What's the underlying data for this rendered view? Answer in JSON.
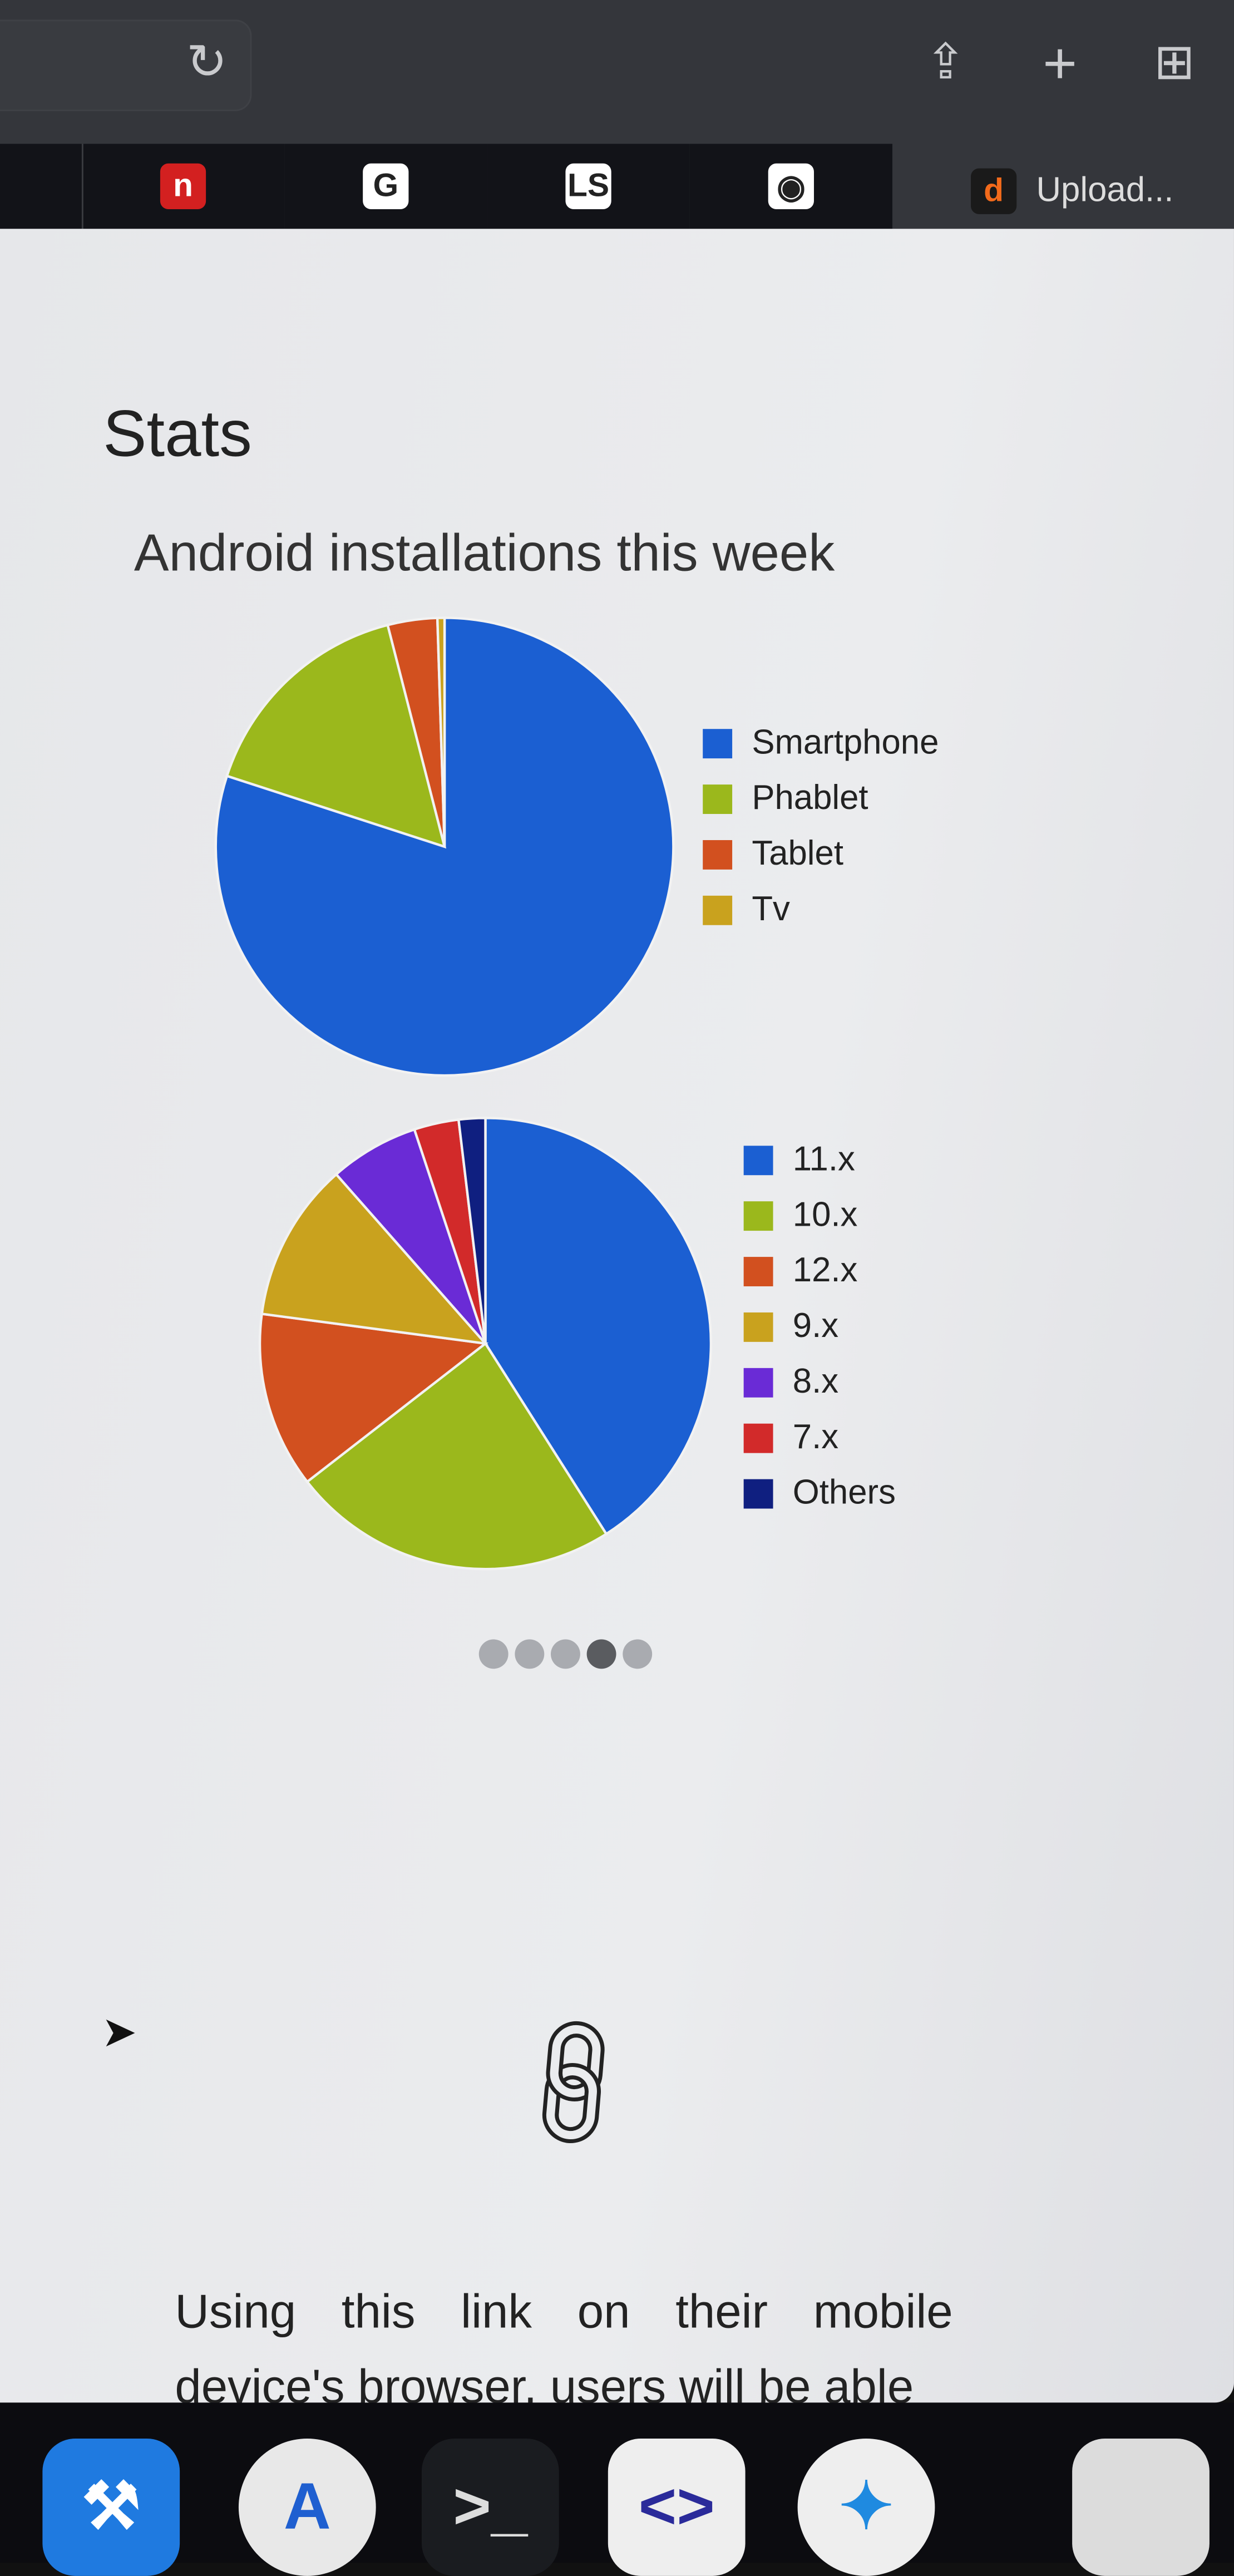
{
  "browser": {
    "toolbar_icons": [
      "reload-icon",
      "share-icon",
      "new-tab-icon",
      "tab-overview-icon"
    ],
    "tabs": [
      {
        "icon": "n-favicon",
        "glyph": "n",
        "color": "#d32020"
      },
      {
        "icon": "google-favicon",
        "glyph": "G",
        "color": "#ffffff"
      },
      {
        "icon": "ls-favicon",
        "glyph": "LS",
        "color": "#ffffff"
      },
      {
        "icon": "github-favicon",
        "glyph": "◉",
        "color": "#ffffff"
      }
    ],
    "active_tab": {
      "icon_glyph": "d",
      "icon_color": "#f26a1b",
      "label": "Upload..."
    }
  },
  "page": {
    "title": "Stats",
    "subtitle": "Android installations this week",
    "carousel": {
      "count": 5,
      "active_index": 3
    },
    "paragraph": "Using this link on their mobile device's browser, users will be able"
  },
  "chart_data": [
    {
      "type": "pie",
      "title": "",
      "categories": [
        "Smartphone",
        "Phablet",
        "Tablet",
        "Tv"
      ],
      "values": [
        80,
        16,
        3.5,
        0.5
      ],
      "colors": [
        "#1b5fd2",
        "#9bb81c",
        "#d2501f",
        "#c9a21e"
      ],
      "legend": "right"
    },
    {
      "type": "pie",
      "title": "",
      "categories": [
        "11.x",
        "10.x",
        "12.x",
        "9.x",
        "8.x",
        "7.x",
        "Others"
      ],
      "values": [
        41,
        23.5,
        12.6,
        11.4,
        6.4,
        3.2,
        1.9
      ],
      "colors": [
        "#1b5fd2",
        "#9bb81c",
        "#d2501f",
        "#c9a21e",
        "#6a2bd6",
        "#d22a2a",
        "#0f1f80"
      ],
      "legend": "right"
    }
  ],
  "dock": {
    "apps": [
      {
        "name": "xcode-icon",
        "glyph": "⚒",
        "bg": "#1f7ae0",
        "fg": "#ffffff"
      },
      {
        "name": "android-studio-icon",
        "glyph": "A",
        "bg": "#e8e8e8",
        "fg": "#1f5fd0"
      },
      {
        "name": "terminal-icon",
        "glyph": ">_",
        "bg": "#1a1c20",
        "fg": "#dddddd"
      },
      {
        "name": "code-editor-icon",
        "glyph": "<>",
        "bg": "#eeeeee",
        "fg": "#2a2a9a"
      },
      {
        "name": "safari-icon",
        "glyph": "✦",
        "bg": "#eeeeee",
        "fg": "#1f8ae0"
      },
      {
        "name": "preview-icon",
        "glyph": "",
        "bg": "#dcdcdc",
        "fg": "#4a7ad0"
      }
    ]
  }
}
